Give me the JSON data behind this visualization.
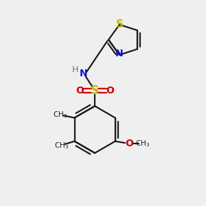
{
  "bg_color": "#efefef",
  "bond_color": "#1a1a1a",
  "S_color": "#b8b800",
  "N_color": "#1010cc",
  "O_color": "#cc0000",
  "H_color": "#5a7a7a",
  "figsize": [
    3.0,
    3.0
  ],
  "dpi": 100,
  "xlim": [
    0,
    10
  ],
  "ylim": [
    0,
    10
  ]
}
